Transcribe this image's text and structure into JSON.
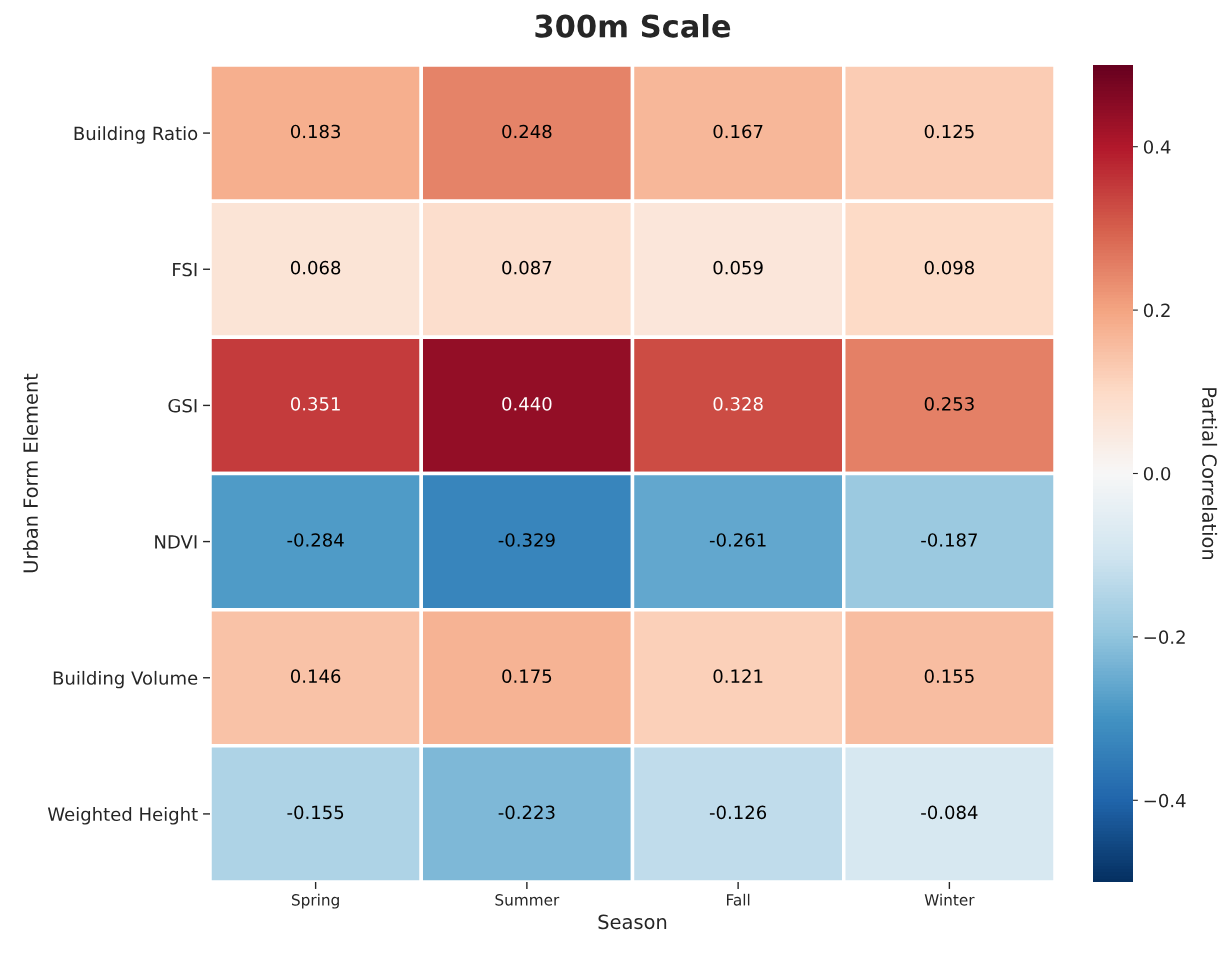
{
  "chart_data": {
    "type": "heatmap",
    "title": "300m Scale",
    "xlabel": "Season",
    "ylabel": "Urban Form Element",
    "clabel": "Partial Correlation",
    "categories": [
      "Spring",
      "Summer",
      "Fall",
      "Winter"
    ],
    "y_categories": [
      "Building Ratio",
      "FSI",
      "GSI",
      "NDVI",
      "Building Volume",
      "Weighted Height"
    ],
    "cells": [
      [
        0.183,
        0.248,
        0.167,
        0.125
      ],
      [
        0.068,
        0.087,
        0.059,
        0.098
      ],
      [
        0.351,
        0.44,
        0.328,
        0.253
      ],
      [
        -0.284,
        -0.329,
        -0.261,
        -0.187
      ],
      [
        0.146,
        0.175,
        0.121,
        0.155
      ],
      [
        -0.155,
        -0.223,
        -0.126,
        -0.084
      ]
    ],
    "cell_labels": [
      [
        "0.183",
        "0.248",
        "0.167",
        "0.125"
      ],
      [
        "0.068",
        "0.087",
        "0.059",
        "0.098"
      ],
      [
        "0.351",
        "0.440",
        "0.328",
        "0.253"
      ],
      [
        "-0.284",
        "-0.329",
        "-0.261",
        "-0.187"
      ],
      [
        "0.146",
        "0.175",
        "0.121",
        "0.155"
      ],
      [
        "-0.155",
        "-0.223",
        "-0.126",
        "-0.084"
      ]
    ],
    "clim": [
      -0.5,
      0.5
    ],
    "cticks": [
      {
        "value": -0.4,
        "label": "−0.4"
      },
      {
        "value": -0.2,
        "label": "−0.2"
      },
      {
        "value": 0.0,
        "label": "0.0"
      },
      {
        "value": 0.2,
        "label": "0.2"
      },
      {
        "value": 0.4,
        "label": "0.4"
      }
    ]
  }
}
